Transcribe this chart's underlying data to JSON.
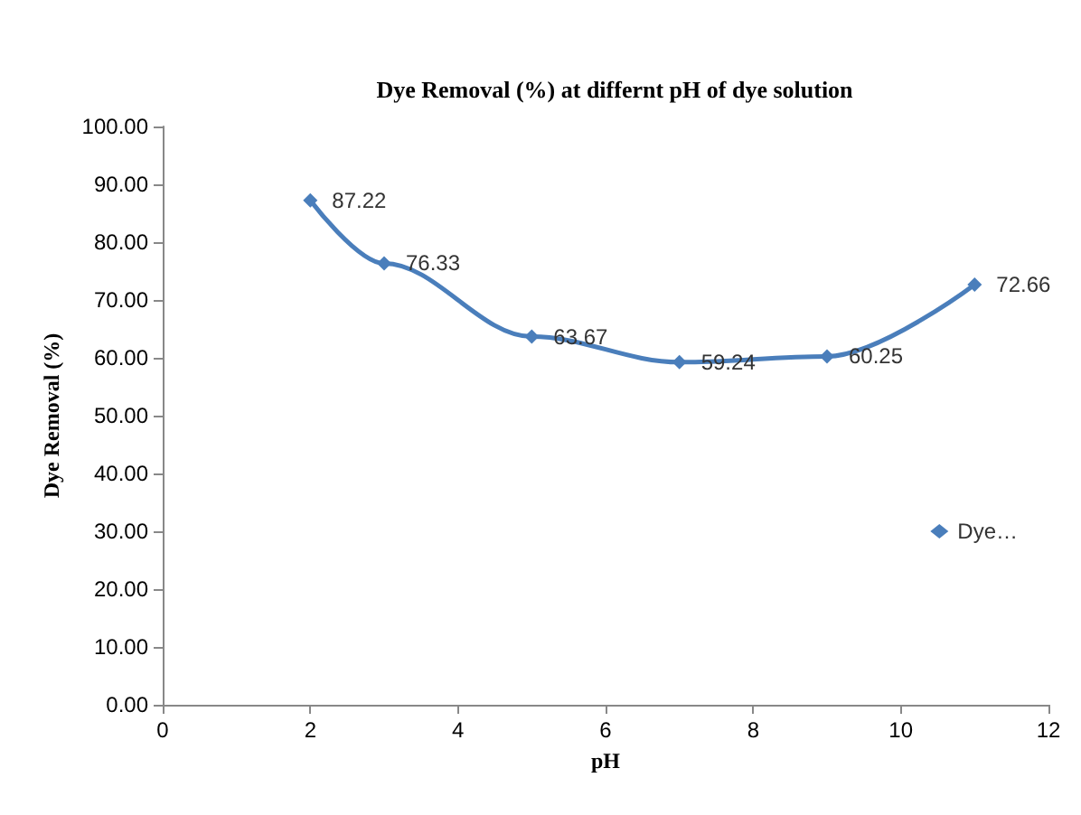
{
  "chart_data": {
    "type": "line",
    "title": "Dye Removal (%) at differnt pH of dye solution",
    "xlabel": "pH",
    "ylabel": "Dye Removal (%)",
    "x": [
      2,
      3,
      5,
      7,
      9,
      11
    ],
    "series": [
      {
        "name": "Dye…",
        "color": "#4a7ebb",
        "values": [
          87.22,
          76.33,
          63.67,
          59.24,
          60.25,
          72.66
        ]
      }
    ],
    "xlim": [
      0,
      12
    ],
    "xticks": [
      0,
      2,
      4,
      6,
      8,
      10,
      12
    ],
    "ylim": [
      0,
      100
    ],
    "yticks": [
      {
        "value": 0,
        "label": "0.00"
      },
      {
        "value": 10,
        "label": "10.00"
      },
      {
        "value": 20,
        "label": "20.00"
      },
      {
        "value": 30,
        "label": "30.00"
      },
      {
        "value": 40,
        "label": "40.00"
      },
      {
        "value": 50,
        "label": "50.00"
      },
      {
        "value": 60,
        "label": "60.00"
      },
      {
        "value": 70,
        "label": "70.00"
      },
      {
        "value": 80,
        "label": "80.00"
      },
      {
        "value": 90,
        "label": "90.00"
      },
      {
        "value": 100,
        "label": "100.00"
      }
    ],
    "marker": "diamond",
    "line_style": "solid",
    "data_labels": true,
    "legend": "right"
  }
}
